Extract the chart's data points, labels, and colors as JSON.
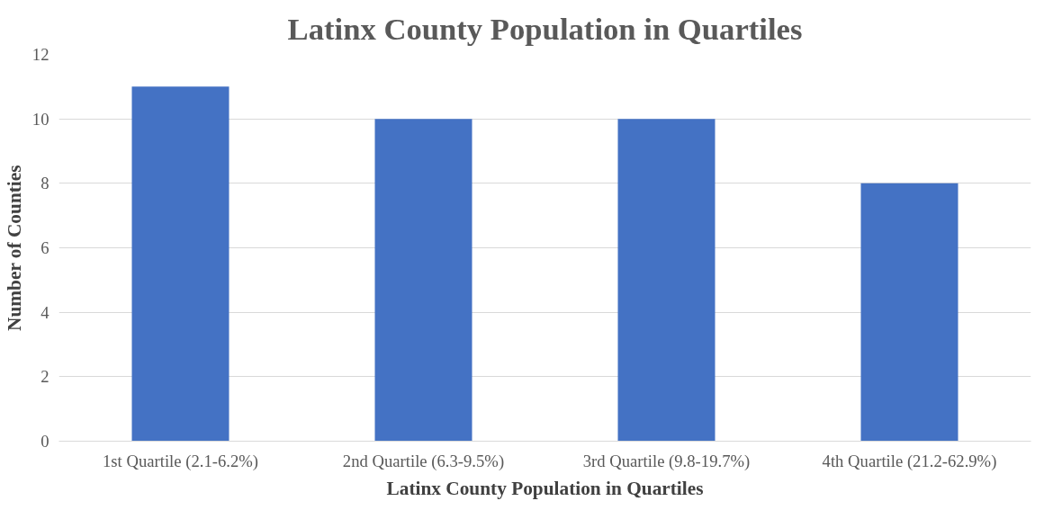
{
  "chart_data": {
    "type": "bar",
    "title": "Latinx County Population in Quartiles",
    "xlabel": "Latinx County Population in Quartiles",
    "ylabel": "Number of Counties",
    "categories": [
      "1st Quartile (2.1-6.2%)",
      "2nd Quartile (6.3-9.5%)",
      "3rd Quartile (9.8-19.7%)",
      "4th Quartile (21.2-62.9%)"
    ],
    "values": [
      11,
      10,
      10,
      8
    ],
    "color": "#4472c4",
    "ylim": [
      0,
      12
    ],
    "yticks": [
      0,
      2,
      4,
      6,
      8,
      10,
      12
    ],
    "grid": "y"
  }
}
